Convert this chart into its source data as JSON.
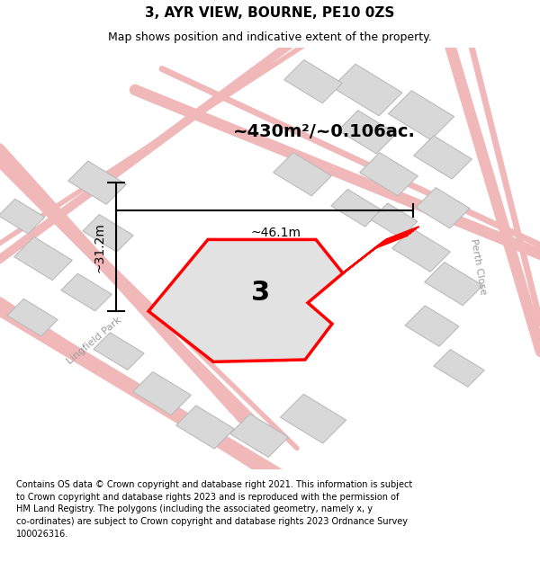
{
  "title": "3, AYR VIEW, BOURNE, PE10 0ZS",
  "subtitle": "Map shows position and indicative extent of the property.",
  "footer_text": "Contains OS data © Crown copyright and database right 2021. This information is subject\nto Crown copyright and database rights 2023 and is reproduced with the permission of\nHM Land Registry. The polygons (including the associated geometry, namely x, y\nco-ordinates) are subject to Crown copyright and database rights 2023 Ordnance Survey\n100026316.",
  "area_label": "~430m²/~0.106ac.",
  "width_label": "~46.1m",
  "height_label": "~31.2m",
  "plot_number": "3",
  "map_bg": "#f5f5f5",
  "road_color": "#f0b8b8",
  "building_color": "#d8d8d8",
  "building_edge": "#bbbbbb",
  "title_fontsize": 11,
  "subtitle_fontsize": 9,
  "footer_fontsize": 7,
  "area_fontsize": 14,
  "dim_fontsize": 10,
  "plot_num_fontsize": 22
}
